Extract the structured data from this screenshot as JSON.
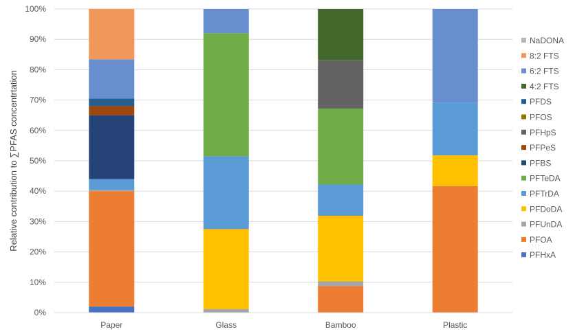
{
  "chart_data": {
    "type": "bar",
    "stacked": true,
    "normalized_percent": true,
    "categories": [
      "Paper",
      "Glass",
      "Bamboo",
      "Plastic"
    ],
    "ylabel": "Relative contribution to ∑PFAS concentrtation",
    "xlabel": "",
    "ylim": [
      0,
      100
    ],
    "yticks": [
      "0%",
      "10%",
      "20%",
      "30%",
      "40%",
      "50%",
      "60%",
      "70%",
      "80%",
      "90%",
      "100%"
    ],
    "grid": true,
    "legend_position": "right",
    "series": [
      {
        "name": "PFHxA",
        "color": "#4472C4",
        "values": [
          2,
          0,
          0,
          0
        ]
      },
      {
        "name": "PFOA",
        "color": "#ED7D31",
        "values": [
          38,
          0,
          8.7,
          41.7
        ]
      },
      {
        "name": "PFUnDA",
        "color": "#A5A5A5",
        "values": [
          0.4,
          1.2,
          1.6,
          0
        ]
      },
      {
        "name": "PFDoDA",
        "color": "#FFC000",
        "values": [
          0,
          26.3,
          21.6,
          10.1
        ]
      },
      {
        "name": "PFTrDA",
        "color": "#5B9BD5",
        "values": [
          3.6,
          24,
          10.3,
          17.4
        ]
      },
      {
        "name": "PFTeDA",
        "color": "#70AD47",
        "values": [
          0,
          40.5,
          25,
          0
        ]
      },
      {
        "name": "PFBS",
        "color": "#264478",
        "values": [
          21,
          0,
          0,
          0
        ]
      },
      {
        "name": "PFPeS",
        "color": "#9E480E",
        "values": [
          3,
          0,
          0,
          0
        ]
      },
      {
        "name": "PFHpS",
        "color": "#636363",
        "values": [
          0,
          0,
          16,
          0
        ]
      },
      {
        "name": "PFOS",
        "color": "#997300",
        "values": [
          0,
          0,
          0,
          0
        ]
      },
      {
        "name": "PFDS",
        "color": "#255E91",
        "values": [
          2.5,
          0,
          0,
          0
        ]
      },
      {
        "name": "4:2 FTS",
        "color": "#43682B",
        "values": [
          0,
          0,
          16.8,
          0
        ]
      },
      {
        "name": "6:2 FTS",
        "color": "#698ED0",
        "values": [
          12.9,
          8,
          0,
          30.8
        ]
      },
      {
        "name": "8:2 FTS",
        "color": "#F1975A",
        "values": [
          16.6,
          0,
          0,
          0
        ]
      },
      {
        "name": "NaDONA",
        "color": "#B7B7B7",
        "values": [
          0,
          0,
          0,
          0
        ]
      }
    ]
  }
}
